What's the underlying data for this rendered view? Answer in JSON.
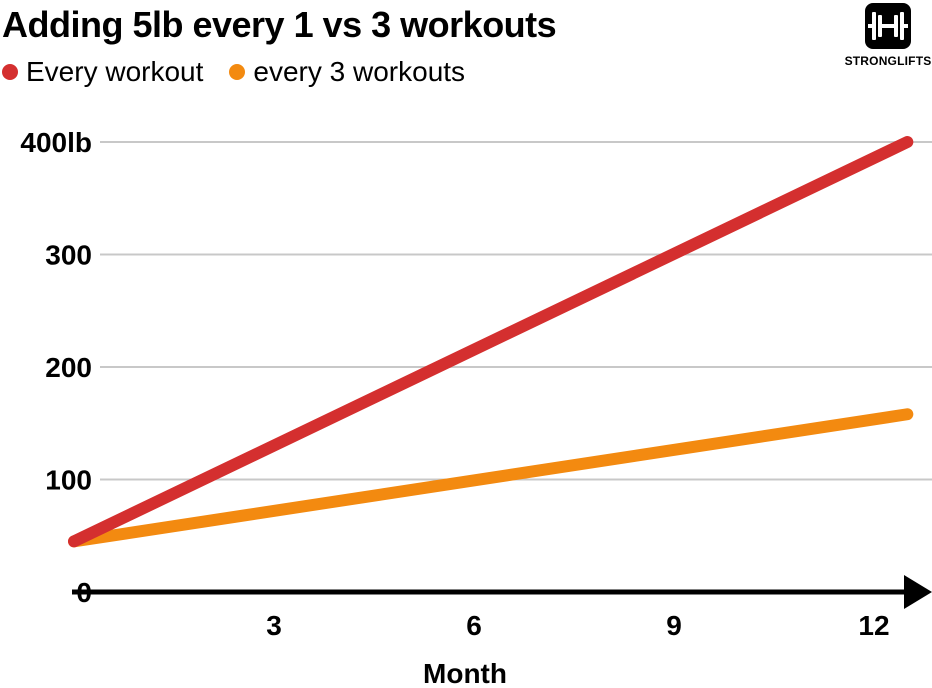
{
  "chart_data": {
    "type": "line",
    "title": "Adding 5lb every 1 vs 3 workouts",
    "xlabel": "Month",
    "ylabel": "",
    "xlim": [
      0,
      12.8
    ],
    "ylim": [
      0,
      400
    ],
    "x_ticks": [
      {
        "value": 3,
        "label": "3"
      },
      {
        "value": 6,
        "label": "6"
      },
      {
        "value": 9,
        "label": "9"
      },
      {
        "value": 12,
        "label": "12"
      }
    ],
    "y_ticks": [
      {
        "value": 0,
        "label": "0"
      },
      {
        "value": 100,
        "label": "100"
      },
      {
        "value": 200,
        "label": "200"
      },
      {
        "value": 300,
        "label": "300"
      },
      {
        "value": 400,
        "label": "400lb"
      }
    ],
    "grid": true,
    "legend_position": "top-left",
    "series": [
      {
        "name": "Every workout",
        "color": "#d42f2f",
        "x": [
          0,
          12.5
        ],
        "values": [
          45,
          400
        ]
      },
      {
        "name": "every 3 workouts",
        "color": "#f38a10",
        "x": [
          0,
          12.5
        ],
        "values": [
          45,
          158
        ]
      }
    ]
  },
  "logo": {
    "text": "STRONGLIFTS",
    "icon": "barbell-plates-icon"
  }
}
